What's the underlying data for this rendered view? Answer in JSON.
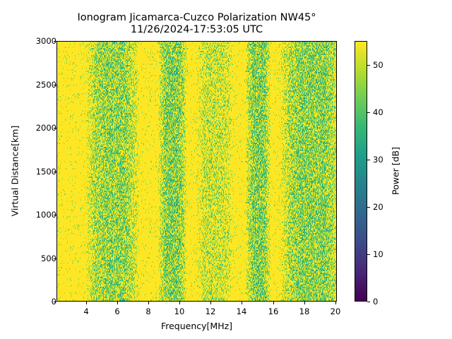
{
  "chart_data": {
    "type": "heatmap",
    "title": "Ionogram Jicamarca-Cuzco Polarization NW45°",
    "subtitle": "11/26/2024-17:53:05 UTC",
    "xlabel": "Frequency[MHz]",
    "ylabel": "Virtual Distance[km]",
    "xlim": [
      2.1,
      20.1
    ],
    "ylim": [
      0,
      3000
    ],
    "xticks": [
      4,
      6,
      8,
      10,
      12,
      14,
      16,
      18,
      20
    ],
    "yticks": [
      0,
      500,
      1000,
      1500,
      2000,
      2500,
      3000
    ],
    "grid": false,
    "colormap": "viridis",
    "colorbar": {
      "label": "Power [dB]",
      "range": [
        0,
        55
      ],
      "ticks": [
        0,
        10,
        20,
        30,
        40,
        50
      ]
    },
    "background_level_db": 55,
    "noise_bands": [
      {
        "freq_start_mhz": 4.3,
        "freq_end_mhz": 7.1,
        "typical_min_db": 38,
        "intensity": 0.75
      },
      {
        "freq_start_mhz": 8.8,
        "freq_end_mhz": 10.3,
        "typical_min_db": 36,
        "intensity": 0.85
      },
      {
        "freq_start_mhz": 11.3,
        "freq_end_mhz": 13.2,
        "typical_min_db": 42,
        "intensity": 0.45
      },
      {
        "freq_start_mhz": 14.4,
        "freq_end_mhz": 15.7,
        "typical_min_db": 36,
        "intensity": 0.85
      },
      {
        "freq_start_mhz": 16.8,
        "freq_end_mhz": 20.1,
        "typical_min_db": 36,
        "intensity": 0.8
      }
    ],
    "sparse_noise_elsewhere": true,
    "notes": "Mostly saturated (~55 dB, yellow) with vertical bands of lower power (green/teal speckle) spanning all virtual distances; no distinct ionospheric echo traces."
  }
}
